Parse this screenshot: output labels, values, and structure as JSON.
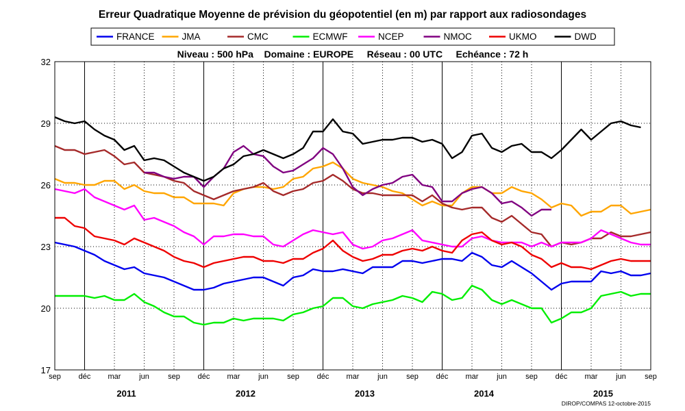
{
  "chart_data": {
    "type": "line",
    "title": "Erreur Quadratique Moyenne de prévision du géopotentiel (en m) par rapport aux radiosondages",
    "subtitle": "Niveau : 500 hPa    Domaine : EUROPE     Réseau : 00 UTC     Echéance : 72 h",
    "footer": "DIROP/COMPAS 12-octobre-2015",
    "ylim": [
      17,
      32
    ],
    "yticks": [
      17,
      20,
      23,
      26,
      29,
      32
    ],
    "x_start": "2010-09",
    "x_end": "2015-09",
    "month_tick_labels": [
      "sep",
      "déc",
      "mar",
      "jun",
      "sep",
      "déc",
      "mar",
      "jun",
      "sep",
      "déc",
      "mar",
      "jun",
      "sep",
      "déc",
      "mar",
      "jun",
      "sep",
      "déc",
      "mar",
      "jun",
      "sep"
    ],
    "year_labels": [
      "2011",
      "2012",
      "2013",
      "2014",
      "2015"
    ],
    "grid": true,
    "legend_position": "top",
    "series": [
      {
        "name": "FRANCE",
        "color": "#0000ee",
        "values": [
          23.2,
          23.1,
          23.0,
          22.8,
          22.6,
          22.3,
          22.1,
          21.9,
          22.0,
          21.7,
          21.6,
          21.5,
          21.3,
          21.1,
          20.9,
          20.9,
          21.0,
          21.2,
          21.3,
          21.4,
          21.5,
          21.5,
          21.3,
          21.1,
          21.5,
          21.6,
          21.9,
          21.8,
          21.8,
          21.9,
          21.8,
          21.7,
          22.0,
          22.0,
          22.0,
          22.3,
          22.3,
          22.2,
          22.3,
          22.4,
          22.4,
          22.3,
          22.7,
          22.5,
          22.1,
          22.0,
          22.3,
          22.0,
          21.7,
          21.3,
          20.9,
          21.2,
          21.3,
          21.3,
          21.3,
          21.8,
          21.7,
          21.8,
          21.6,
          21.6,
          21.7
        ]
      },
      {
        "name": "JMA",
        "color": "#ffa500",
        "values": [
          26.3,
          26.1,
          26.1,
          26.0,
          26.0,
          26.2,
          26.2,
          25.8,
          26.0,
          25.7,
          25.6,
          25.6,
          25.4,
          25.4,
          25.1,
          25.1,
          25.1,
          25.0,
          25.6,
          25.8,
          25.9,
          25.9,
          25.8,
          25.9,
          26.3,
          26.4,
          26.8,
          26.9,
          27.1,
          26.8,
          26.3,
          26.1,
          26.0,
          25.9,
          25.7,
          25.6,
          25.3,
          25.0,
          25.2,
          25.0,
          25.0,
          25.6,
          25.9,
          25.9,
          25.6,
          25.6,
          25.9,
          25.7,
          25.6,
          25.3,
          24.9,
          25.1,
          25.0,
          24.5,
          24.7,
          24.7,
          25.0,
          25.0,
          24.6,
          24.7,
          24.8
        ]
      },
      {
        "name": "CMC",
        "color": "#a52a2a",
        "values": [
          27.9,
          27.7,
          27.7,
          27.5,
          27.6,
          27.7,
          27.4,
          27.0,
          27.1,
          26.6,
          26.5,
          26.4,
          26.2,
          26.1,
          25.7,
          25.5,
          25.3,
          25.5,
          25.7,
          25.8,
          25.9,
          26.1,
          25.7,
          25.5,
          25.7,
          25.8,
          26.1,
          26.2,
          26.5,
          26.2,
          25.8,
          25.6,
          25.6,
          25.5,
          25.5,
          25.5,
          25.5,
          25.2,
          25.5,
          25.1,
          24.9,
          24.8,
          24.9,
          24.9,
          24.4,
          24.2,
          24.5,
          24.1,
          23.7,
          23.6,
          23.0,
          23.2,
          23.1,
          23.2,
          23.4,
          23.4,
          23.7,
          23.5,
          23.5,
          23.6,
          23.7
        ]
      },
      {
        "name": "ECMWF",
        "color": "#00ee00",
        "values": [
          20.6,
          20.6,
          20.6,
          20.6,
          20.5,
          20.6,
          20.4,
          20.4,
          20.7,
          20.3,
          20.1,
          19.8,
          19.6,
          19.6,
          19.3,
          19.2,
          19.3,
          19.3,
          19.5,
          19.4,
          19.5,
          19.5,
          19.5,
          19.4,
          19.7,
          19.8,
          20.0,
          20.1,
          20.5,
          20.5,
          20.1,
          20.0,
          20.2,
          20.3,
          20.4,
          20.6,
          20.5,
          20.3,
          20.8,
          20.7,
          20.4,
          20.5,
          21.1,
          20.9,
          20.4,
          20.2,
          20.4,
          20.2,
          20.0,
          20.0,
          19.3,
          19.5,
          19.8,
          19.8,
          20.0,
          20.6,
          20.7,
          20.8,
          20.6,
          20.7,
          20.7
        ]
      },
      {
        "name": "NCEP",
        "color": "#ff00ff",
        "values": [
          25.8,
          25.7,
          25.6,
          25.8,
          25.4,
          25.2,
          25.0,
          24.8,
          25.0,
          24.3,
          24.4,
          24.2,
          24.0,
          23.7,
          23.5,
          23.1,
          23.5,
          23.5,
          23.6,
          23.6,
          23.5,
          23.5,
          23.1,
          23.0,
          23.3,
          23.6,
          23.8,
          23.7,
          23.6,
          23.7,
          23.1,
          22.9,
          23.0,
          23.3,
          23.4,
          23.6,
          23.8,
          23.3,
          23.2,
          23.1,
          23.0,
          23.0,
          23.4,
          23.5,
          23.3,
          23.2,
          23.2,
          23.2,
          23.0,
          23.2,
          23.0,
          23.2,
          23.2,
          23.2,
          23.4,
          23.8,
          23.6,
          23.4,
          23.2,
          23.1,
          23.1
        ]
      },
      {
        "name": "NMOC",
        "color": "#800080",
        "values": [
          null,
          null,
          null,
          null,
          null,
          null,
          null,
          null,
          null,
          26.6,
          26.6,
          26.4,
          26.3,
          26.4,
          26.4,
          25.9,
          26.4,
          26.8,
          27.6,
          27.9,
          27.5,
          27.4,
          26.9,
          26.6,
          26.7,
          27.0,
          27.3,
          27.8,
          27.5,
          26.8,
          25.9,
          25.5,
          25.8,
          26.0,
          26.1,
          26.4,
          26.5,
          26.0,
          25.9,
          25.2,
          25.2,
          25.6,
          25.8,
          25.9,
          25.6,
          25.1,
          25.2,
          24.9,
          24.5,
          24.8,
          24.8,
          null,
          null,
          null,
          null,
          null,
          null,
          null,
          null,
          null,
          null
        ]
      },
      {
        "name": "UKMO",
        "color": "#ee0000",
        "values": [
          24.4,
          24.4,
          24.0,
          23.9,
          23.5,
          23.4,
          23.3,
          23.1,
          23.4,
          23.2,
          23.0,
          22.8,
          22.5,
          22.3,
          22.2,
          22.0,
          22.2,
          22.3,
          22.4,
          22.5,
          22.5,
          22.3,
          22.3,
          22.2,
          22.4,
          22.4,
          22.7,
          22.9,
          23.3,
          22.8,
          22.5,
          22.3,
          22.4,
          22.6,
          22.6,
          22.8,
          22.9,
          22.8,
          23.0,
          22.8,
          22.7,
          23.3,
          23.6,
          23.7,
          23.3,
          23.1,
          23.2,
          23.0,
          22.6,
          22.4,
          22.0,
          22.2,
          22.0,
          22.0,
          21.9,
          22.1,
          22.3,
          22.4,
          22.3,
          22.3,
          22.3
        ]
      },
      {
        "name": "DWD",
        "color": "#000000",
        "values": [
          29.3,
          29.1,
          29.0,
          29.1,
          28.7,
          28.4,
          28.2,
          27.7,
          27.9,
          27.2,
          27.3,
          27.2,
          26.9,
          26.6,
          26.4,
          26.2,
          26.4,
          26.8,
          27.0,
          27.4,
          27.5,
          27.7,
          27.5,
          27.3,
          27.5,
          27.8,
          28.6,
          28.6,
          29.2,
          28.6,
          28.5,
          28.0,
          28.1,
          28.2,
          28.2,
          28.3,
          28.3,
          28.1,
          28.2,
          28.0,
          27.3,
          27.6,
          28.4,
          28.5,
          27.8,
          27.6,
          27.9,
          28.0,
          27.6,
          27.6,
          27.3,
          27.7,
          28.2,
          28.7,
          28.2,
          28.6,
          29.0,
          29.1,
          28.9,
          28.8,
          null
        ]
      }
    ]
  }
}
